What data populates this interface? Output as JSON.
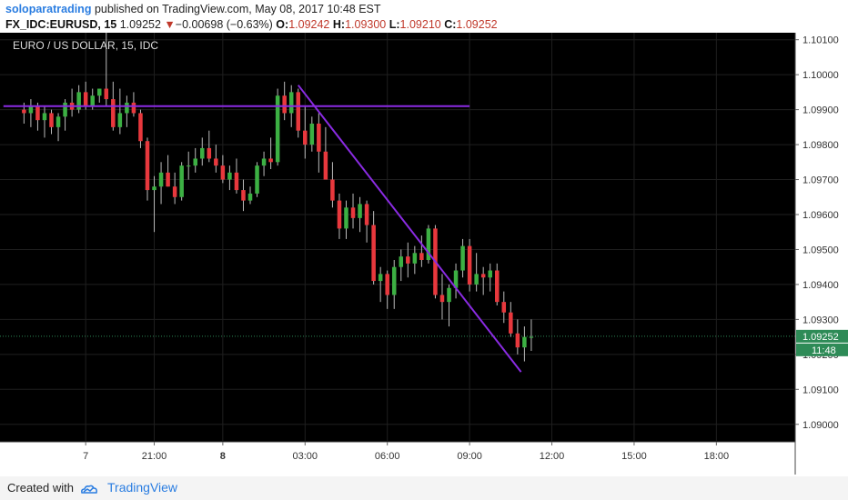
{
  "header": {
    "author": "soloparatrading",
    "published_text": "published on TradingView.com, May 08, 2017 10:48 EST",
    "symbol": "FX_IDC:EURUSD, 15",
    "last_price": "1.09252",
    "change_arrow": "▼",
    "change": "−0.00698 (−0.63%)",
    "ohlc": [
      {
        "label": "O:",
        "value": "1.09242"
      },
      {
        "label": "H:",
        "value": "1.09300"
      },
      {
        "label": "L:",
        "value": "1.09210"
      },
      {
        "label": "C:",
        "value": "1.09252"
      }
    ]
  },
  "footer": {
    "created_with": "Created with",
    "brand": "TradingView"
  },
  "colors": {
    "background": "#000000",
    "up": "#3cb043",
    "down": "#e8383d",
    "trendline": "#8a2be2",
    "last_price_tag": "#2e8b57"
  },
  "chart_data": {
    "type": "candlestick",
    "title": "EURO / US DOLLAR, 15, IDC",
    "ylim": [
      1.0895,
      1.1012
    ],
    "y_ticks": [
      "1.10100",
      "1.10000",
      "1.09900",
      "1.09800",
      "1.09700",
      "1.09600",
      "1.09500",
      "1.09400",
      "1.09300",
      "1.09200",
      "1.09100",
      "1.09000"
    ],
    "x_ticks": [
      {
        "i": 12,
        "label": "7",
        "bold": false
      },
      {
        "i": 22,
        "label": "21:00",
        "bold": false
      },
      {
        "i": 32,
        "label": "8",
        "bold": true
      },
      {
        "i": 44,
        "label": "03:00",
        "bold": false
      },
      {
        "i": 56,
        "label": "06:00",
        "bold": false
      },
      {
        "i": 68,
        "label": "09:00",
        "bold": false
      },
      {
        "i": 80,
        "label": "12:00",
        "bold": false
      },
      {
        "i": 92,
        "label": "15:00",
        "bold": false
      },
      {
        "i": 104,
        "label": "18:00",
        "bold": false
      }
    ],
    "x_range": [
      -0.5,
      115.5
    ],
    "last_price": 1.09252,
    "last_price_label": "1.09252",
    "countdown_label": "11:48",
    "candles": [
      [
        1.099,
        1.0992,
        1.0986,
        1.0989
      ],
      [
        1.0989,
        1.0993,
        1.0985,
        1.0991
      ],
      [
        1.0991,
        1.0992,
        1.0984,
        1.0987
      ],
      [
        1.0987,
        1.0991,
        1.0982,
        1.0989
      ],
      [
        1.0989,
        1.099,
        1.0983,
        1.0985
      ],
      [
        1.0985,
        1.0989,
        1.0981,
        1.0988
      ],
      [
        1.0988,
        1.0993,
        1.0984,
        1.0992
      ],
      [
        1.0992,
        1.0996,
        1.0988,
        1.099
      ],
      [
        1.099,
        1.0997,
        1.0989,
        1.0995
      ],
      [
        1.0995,
        1.0998,
        1.099,
        1.0991
      ],
      [
        1.0991,
        1.0996,
        1.099,
        1.0994
      ],
      [
        1.0994,
        1.0996,
        1.0992,
        1.0996
      ],
      [
        1.0996,
        1.1012,
        1.0991,
        1.0993
      ],
      [
        1.0993,
        1.0998,
        1.0984,
        1.0985
      ],
      [
        1.0985,
        1.0996,
        1.0983,
        1.0989
      ],
      [
        1.0989,
        1.0994,
        1.0985,
        1.0992
      ],
      [
        1.0992,
        1.0995,
        1.0988,
        1.0989
      ],
      [
        1.0989,
        1.099,
        1.0979,
        1.0981
      ],
      [
        1.0981,
        1.0982,
        1.0964,
        1.0967
      ],
      [
        1.0967,
        1.0971,
        1.0955,
        1.0968
      ],
      [
        1.0968,
        1.0975,
        1.0963,
        1.0972
      ],
      [
        1.0972,
        1.0977,
        1.0968,
        1.0968
      ],
      [
        1.0968,
        1.0972,
        1.0963,
        1.0965
      ],
      [
        1.0965,
        1.0975,
        1.0964,
        1.0974
      ],
      [
        1.0974,
        1.0978,
        1.097,
        1.0974
      ],
      [
        1.0974,
        1.0979,
        1.0972,
        1.0976
      ],
      [
        1.0976,
        1.0982,
        1.0974,
        1.0979
      ],
      [
        1.0979,
        1.0984,
        1.0975,
        1.0976
      ],
      [
        1.0976,
        1.098,
        1.0972,
        1.0974
      ],
      [
        1.0974,
        1.0977,
        1.0969,
        1.097
      ],
      [
        1.097,
        1.0974,
        1.0967,
        1.0972
      ],
      [
        1.0972,
        1.0976,
        1.0966,
        1.0967
      ],
      [
        1.0967,
        1.097,
        1.0961,
        1.0964
      ],
      [
        1.0964,
        1.0968,
        1.0963,
        1.0966
      ],
      [
        1.0966,
        1.0975,
        1.0965,
        1.0974
      ],
      [
        1.0974,
        1.0978,
        1.0971,
        1.0976
      ],
      [
        1.0976,
        1.0982,
        1.0973,
        1.0975
      ],
      [
        1.0975,
        1.0996,
        1.0974,
        1.0994
      ],
      [
        1.0994,
        1.0998,
        1.0987,
        1.0989
      ],
      [
        1.0989,
        1.0997,
        1.0985,
        1.0995
      ],
      [
        1.0995,
        1.0996,
        1.0982,
        1.0984
      ],
      [
        1.0984,
        1.0991,
        1.0976,
        1.098
      ],
      [
        1.098,
        1.0988,
        1.0978,
        1.0986
      ],
      [
        1.0986,
        1.0989,
        1.0972,
        1.0978
      ],
      [
        1.0978,
        1.0985,
        1.097,
        1.097
      ],
      [
        1.097,
        1.0975,
        1.0962,
        1.0964
      ],
      [
        1.0964,
        1.0966,
        1.0953,
        1.0956
      ],
      [
        1.0956,
        1.0964,
        1.0953,
        1.0962
      ],
      [
        1.0962,
        1.0966,
        1.0956,
        1.0959
      ],
      [
        1.0959,
        1.0965,
        1.0955,
        1.0963
      ],
      [
        1.0963,
        1.0964,
        1.0952,
        1.0957
      ],
      [
        1.0957,
        1.0961,
        1.094,
        1.0941
      ],
      [
        1.0941,
        1.0945,
        1.0935,
        1.0943
      ],
      [
        1.0943,
        1.0944,
        1.0933,
        1.0937
      ],
      [
        1.0937,
        1.0947,
        1.0933,
        1.0945
      ],
      [
        1.0945,
        1.095,
        1.0941,
        1.0948
      ],
      [
        1.0948,
        1.0952,
        1.0942,
        1.0946
      ],
      [
        1.0946,
        1.0951,
        1.0943,
        1.0949
      ],
      [
        1.0949,
        1.0954,
        1.0945,
        1.0947
      ],
      [
        1.0947,
        1.0957,
        1.0946,
        1.0956
      ],
      [
        1.0956,
        1.0957,
        1.0936,
        1.0937
      ],
      [
        1.0937,
        1.0943,
        1.093,
        1.0935
      ],
      [
        1.0935,
        1.094,
        1.0928,
        1.0939
      ],
      [
        1.0939,
        1.0946,
        1.0936,
        1.0944
      ],
      [
        1.0944,
        1.0953,
        1.0942,
        1.0951
      ],
      [
        1.0951,
        1.0953,
        1.0938,
        1.094
      ],
      [
        1.094,
        1.0949,
        1.0938,
        1.0943
      ],
      [
        1.0943,
        1.0945,
        1.0937,
        1.0942
      ],
      [
        1.0942,
        1.0946,
        1.0938,
        1.0944
      ],
      [
        1.0944,
        1.0946,
        1.0934,
        1.0935
      ],
      [
        1.0935,
        1.0938,
        1.0929,
        1.0932
      ],
      [
        1.0932,
        1.0935,
        1.0925,
        1.0926
      ],
      [
        1.0926,
        1.093,
        1.092,
        1.0922
      ],
      [
        1.0922,
        1.0928,
        1.0918,
        1.0925
      ],
      [
        1.0925,
        1.093,
        1.0921,
        1.0925
      ]
    ],
    "candle_offset": 3,
    "trendlines": [
      {
        "i1": 0,
        "y1": 1.0991,
        "i2": 68,
        "y2": 1.0991
      },
      {
        "i1": 43,
        "y1": 1.0997,
        "i2": 75.5,
        "y2": 1.0915
      }
    ]
  }
}
